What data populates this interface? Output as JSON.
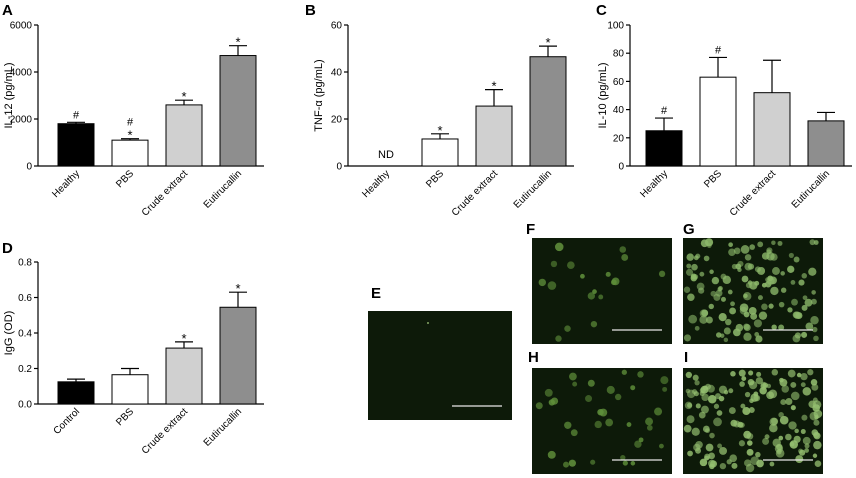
{
  "panels": {
    "A": "A",
    "B": "B",
    "C": "C",
    "D": "D",
    "E": "E",
    "F": "F",
    "G": "G",
    "H": "H",
    "I": "I"
  },
  "chart_data": [
    {
      "panel": "A",
      "type": "bar",
      "ylabel": "IL-12 (pg/mL)",
      "ylim": [
        0,
        6000
      ],
      "yticks": [
        0,
        2000,
        4000,
        6000
      ],
      "categories": [
        "Healthy",
        "PBS",
        "Crude extract",
        "Eutirucallin"
      ],
      "values": [
        1800,
        1100,
        2600,
        4700
      ],
      "errors": [
        60,
        60,
        200,
        420
      ],
      "annotations": [
        [
          "#"
        ],
        [
          "#",
          "*"
        ],
        [
          "*"
        ],
        [
          "*"
        ]
      ],
      "colors": [
        "#000000",
        "#ffffff",
        "#d0d0d0",
        "#8e8e8e"
      ]
    },
    {
      "panel": "B",
      "type": "bar",
      "ylabel": "TNF-α (pg/mL)",
      "ylim": [
        0,
        60
      ],
      "yticks": [
        0,
        20,
        40,
        60
      ],
      "categories": [
        "Healthy",
        "PBS",
        "Crude extract",
        "Eutirucallin"
      ],
      "values": [
        null,
        11.5,
        25.5,
        46.5
      ],
      "errors": [
        null,
        2.2,
        7,
        4.5
      ],
      "annotations": [
        [
          "ND"
        ],
        [
          "*"
        ],
        [
          "*"
        ],
        [
          "*"
        ]
      ],
      "colors": [
        "#000000",
        "#ffffff",
        "#d0d0d0",
        "#8e8e8e"
      ]
    },
    {
      "panel": "C",
      "type": "bar",
      "ylabel": "IL-10 (pg/mL)",
      "ylim": [
        0,
        100
      ],
      "yticks": [
        0,
        20,
        40,
        60,
        80,
        100
      ],
      "categories": [
        "Healthy",
        "PBS",
        "Crude extract",
        "Eutirucallin"
      ],
      "values": [
        25,
        63,
        52,
        32
      ],
      "errors": [
        9,
        14,
        23,
        6
      ],
      "annotations": [
        [
          "#"
        ],
        [
          "#"
        ],
        [],
        []
      ],
      "colors": [
        "#000000",
        "#ffffff",
        "#d0d0d0",
        "#8e8e8e"
      ]
    },
    {
      "panel": "D",
      "type": "bar",
      "ylabel": "IgG (OD)",
      "ylim": [
        0,
        0.8
      ],
      "yticks": [
        0.0,
        0.2,
        0.4,
        0.6,
        0.8
      ],
      "ytick_labels": [
        "0.0",
        "0.2",
        "0.4",
        "0.6",
        "0.8"
      ],
      "categories": [
        "Control",
        "PBS",
        "Crude extract",
        "Eutirucallin"
      ],
      "values": [
        0.125,
        0.165,
        0.315,
        0.545
      ],
      "errors": [
        0.015,
        0.035,
        0.035,
        0.085
      ],
      "annotations": [
        [],
        [],
        [
          "*"
        ],
        [
          "*"
        ]
      ],
      "colors": [
        "#000000",
        "#ffffff",
        "#d0d0d0",
        "#8e8e8e"
      ]
    }
  ],
  "micrographs": [
    {
      "panel": "E",
      "cell_density": 0,
      "cell_color": "#6aa040"
    },
    {
      "panel": "F",
      "cell_density": 18,
      "cell_color": "#5f8f3a"
    },
    {
      "panel": "G",
      "cell_density": 130,
      "cell_color": "#8cb86a"
    },
    {
      "panel": "H",
      "cell_density": 35,
      "cell_color": "#5f8f3a"
    },
    {
      "panel": "I",
      "cell_density": 150,
      "cell_color": "#95c070"
    }
  ]
}
